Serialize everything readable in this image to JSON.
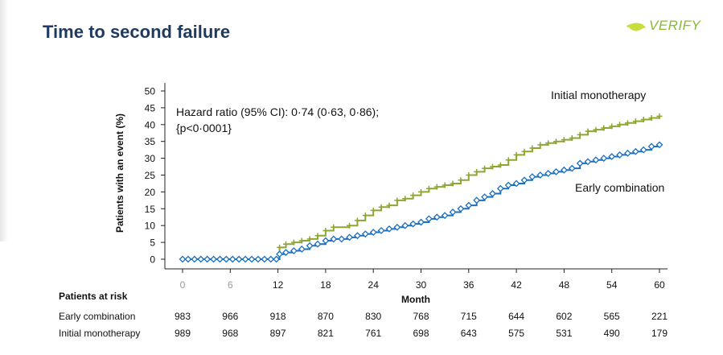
{
  "page": {
    "title": "Time to second failure",
    "logo_text": "VERIFY"
  },
  "chart_data": {
    "type": "line",
    "title": "",
    "xlabel": "Month",
    "ylabel": "Patients with an event (%)",
    "xlim": [
      0,
      60
    ],
    "ylim": [
      0,
      50
    ],
    "xticks": [
      0,
      6,
      12,
      18,
      24,
      30,
      36,
      42,
      48,
      54,
      60
    ],
    "yticks": [
      0,
      5,
      10,
      15,
      20,
      25,
      30,
      35,
      40,
      45,
      50
    ],
    "annotation": "Hazard ratio (95% CI): 0·74 (0·63, 0·86);\n{p<0·0001}",
    "annotation_lines": [
      "Hazard ratio (95% CI): 0·74 (0·63, 0·86);",
      "{p<0·0001}"
    ],
    "series": [
      {
        "name": "Initial monotherapy",
        "color": "#8da631",
        "marker": "plus",
        "x": [
          0,
          11.8,
          12.2,
          13,
          14,
          15,
          16,
          17,
          18,
          19,
          21,
          22,
          23,
          24,
          25,
          26,
          27,
          28,
          29,
          30,
          31,
          32,
          33,
          34,
          35,
          36,
          37,
          38,
          39,
          40,
          41,
          42,
          43,
          44,
          45,
          46,
          47,
          48,
          49,
          50,
          51,
          52,
          53,
          54,
          55,
          56,
          57,
          58,
          59,
          60
        ],
        "y": [
          0,
          0,
          3.5,
          4.5,
          5,
          5.5,
          6,
          7,
          8.5,
          9.5,
          10,
          11.5,
          13,
          14.5,
          15.5,
          16,
          17.5,
          18,
          19,
          20,
          21,
          21.5,
          22,
          22.5,
          23.5,
          25,
          26,
          27,
          27.5,
          28,
          29.5,
          31,
          32,
          33,
          34,
          34.5,
          35,
          35.5,
          36,
          37,
          38,
          38.5,
          39,
          39.5,
          40,
          40.5,
          41,
          41.5,
          42,
          42.5
        ]
      },
      {
        "name": "Early combination",
        "color": "#1a6fc0",
        "marker": "diamond",
        "x": [
          0,
          11.8,
          12.2,
          13,
          14,
          15,
          16,
          17,
          18,
          19,
          20,
          21,
          22,
          23,
          24,
          25,
          26,
          27,
          28,
          29,
          30,
          31,
          32,
          33,
          34,
          35,
          36,
          37,
          38,
          39,
          40,
          41,
          42,
          43,
          44,
          45,
          46,
          47,
          48,
          49,
          50,
          51,
          52,
          53,
          54,
          55,
          56,
          57,
          58,
          59,
          60
        ],
        "y": [
          0,
          0,
          1.5,
          2,
          2.5,
          3,
          4,
          4.5,
          5.5,
          6,
          6,
          6.5,
          7,
          7.5,
          8,
          8.5,
          9,
          9.5,
          10,
          10.5,
          11,
          12,
          12.5,
          13,
          14,
          15,
          16,
          17.5,
          18.5,
          19.5,
          21,
          22,
          22.5,
          23.5,
          24.5,
          25,
          25.5,
          26,
          26.5,
          27,
          28.5,
          29,
          29.5,
          30,
          30.5,
          31,
          31.5,
          32,
          32.5,
          33.5,
          34
        ]
      }
    ],
    "legend": "labels on lines",
    "grid": false
  },
  "at_risk": {
    "header": "Patients at risk",
    "rows": [
      {
        "label": "Early combination",
        "values": [
          "983",
          "966",
          "918",
          "870",
          "830",
          "768",
          "715",
          "644",
          "602",
          "565",
          "221"
        ]
      },
      {
        "label": "Initial monotherapy",
        "values": [
          "989",
          "968",
          "897",
          "821",
          "761",
          "698",
          "643",
          "575",
          "531",
          "490",
          "179"
        ]
      }
    ]
  }
}
